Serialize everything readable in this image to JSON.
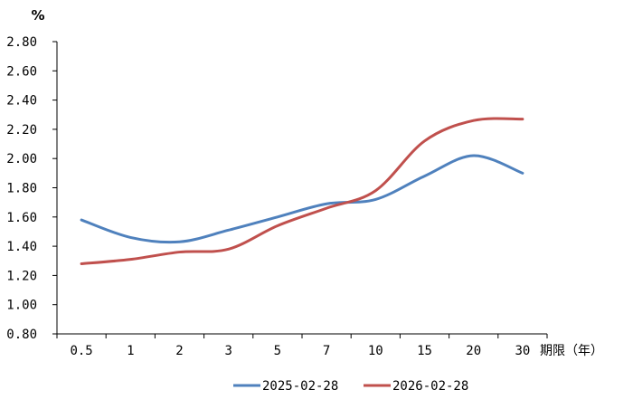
{
  "chart_data": {
    "type": "line",
    "title": "",
    "xlabel": "期限（年）",
    "ylabel": "%",
    "categories": [
      "0.5",
      "1",
      "2",
      "3",
      "5",
      "7",
      "10",
      "15",
      "20",
      "30"
    ],
    "ylim": [
      0.8,
      2.8
    ],
    "yticks": [
      "0.80",
      "1.00",
      "1.20",
      "1.40",
      "1.60",
      "1.80",
      "2.00",
      "2.20",
      "2.40",
      "2.60",
      "2.80"
    ],
    "grid": false,
    "legend_position": "bottom",
    "smooth": true,
    "series": [
      {
        "name": "2025-02-28",
        "color": "#4F81BD",
        "values": [
          1.58,
          1.46,
          1.43,
          1.51,
          1.6,
          1.69,
          1.72,
          1.88,
          2.02,
          1.9
        ]
      },
      {
        "name": "2026-02-28",
        "color": "#C0504D",
        "values": [
          1.28,
          1.31,
          1.36,
          1.38,
          1.54,
          1.66,
          1.78,
          2.12,
          2.26,
          2.27
        ]
      }
    ]
  }
}
